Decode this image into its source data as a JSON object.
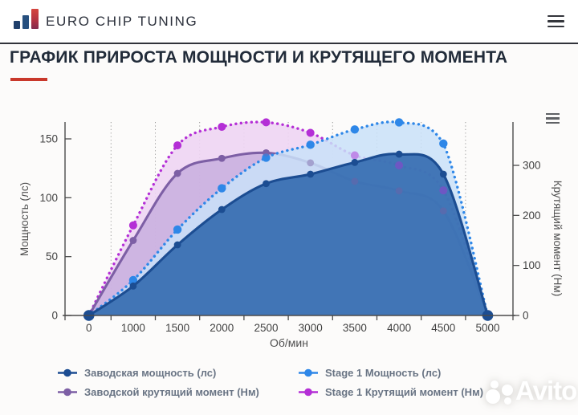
{
  "header": {
    "brand": "EURO CHIP TUNING"
  },
  "page": {
    "title": "ГРАФИК ПРИРОСТА МОЩНОСТИ И КРУТЯЩЕГО МОМЕНТА"
  },
  "watermark": {
    "text": "Avito"
  },
  "colors": {
    "accent_red": "#c9382b",
    "factory_power": "#1c4d92",
    "stage1_power": "#2e87e8",
    "factory_torque": "#7d5fa5",
    "stage1_torque": "#b42fd6",
    "grid": "#999999",
    "axis": "#4b4b4b"
  },
  "chart_data": {
    "type": "line",
    "categories": [
      0,
      1000,
      1500,
      2000,
      2500,
      3000,
      3500,
      4000,
      4500,
      5000
    ],
    "xlabel": "Об/мин",
    "ylabel_left": "Мощность (лс)",
    "ylabel_right": "Крутящий момент (Нм)",
    "yticks_left": [
      0,
      50,
      100,
      150
    ],
    "yticks_right": [
      0,
      100,
      200,
      300
    ],
    "ylim_left": [
      0,
      165
    ],
    "ylim_right": [
      0,
      388
    ],
    "grid": "vertical-dotted",
    "legend_position": "bottom",
    "series": [
      {
        "name": "Stage 1 Крутящий момент (Нм)",
        "axis": "right",
        "style": "dotted",
        "color": "#b42fd6",
        "fill": "#eed5f3",
        "fill_opacity": 0.9,
        "marker_r": 5,
        "values": [
          0,
          180,
          340,
          377,
          386,
          365,
          320,
          300,
          250,
          0
        ]
      },
      {
        "name": "Заводской крутящий момент (Нм)",
        "axis": "right",
        "style": "solid",
        "color": "#7d5fa5",
        "fill": "#c3a8dc",
        "fill_opacity": 0.75,
        "marker_r": 4.4,
        "values": [
          0,
          150,
          284,
          314,
          325,
          305,
          268,
          249,
          209,
          0
        ]
      },
      {
        "name": "Stage 1 Мощность (лс)",
        "axis": "left",
        "style": "dotted",
        "color": "#2e87e8",
        "fill": "#c9e1f8",
        "fill_opacity": 0.85,
        "marker_r": 5.2,
        "values": [
          0,
          30,
          73,
          108,
          134,
          145,
          158,
          164,
          146,
          0
        ]
      },
      {
        "name": "Заводская мощность (лс)",
        "axis": "left",
        "style": "solid",
        "color": "#1c4d92",
        "fill": "#2e66ad",
        "fill_opacity": 0.88,
        "marker_r": 4.4,
        "values": [
          0,
          25,
          60,
          90,
          112,
          120,
          130,
          137,
          120,
          0
        ]
      }
    ],
    "legend": [
      {
        "label": "Заводская мощность (лс)",
        "color": "#1c4d92"
      },
      {
        "label": "Заводской крутящий момент (Нм)",
        "color": "#7d5fa5"
      },
      {
        "label": "Stage 1 Мощность (лс)",
        "color": "#2e87e8"
      },
      {
        "label": "Stage 1 Крутящий момент (Нм)",
        "color": "#b42fd6"
      }
    ]
  }
}
